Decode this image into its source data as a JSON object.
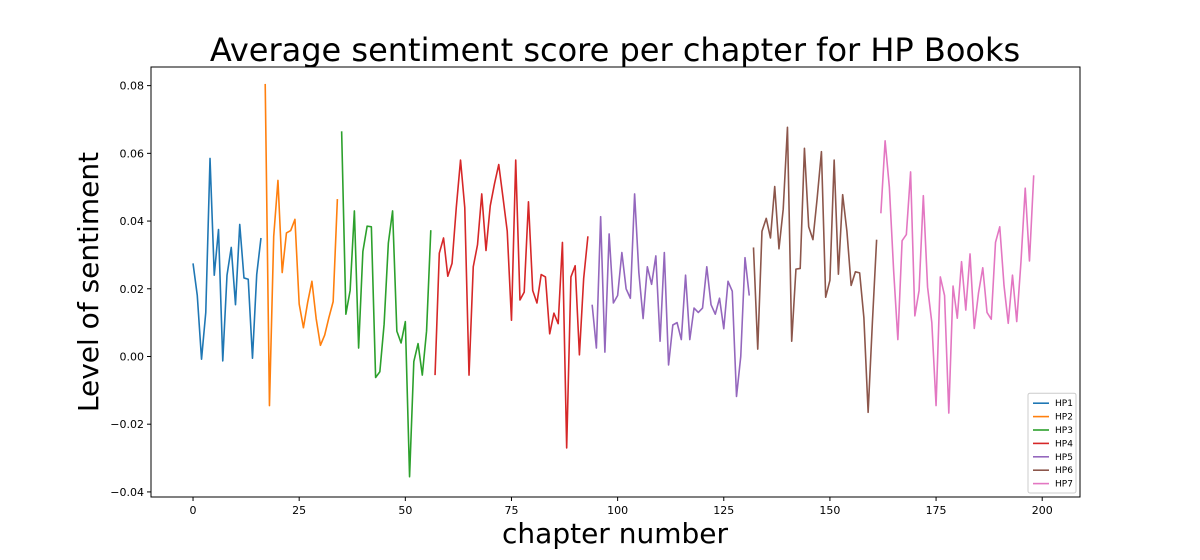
{
  "chart_data": {
    "type": "line",
    "title": "Average sentiment score per chapter for HP Books",
    "xlabel": "chapter number",
    "ylabel": "Level of sentiment",
    "xlim": [
      -9.9,
      208.9
    ],
    "ylim": [
      -0.0415,
      0.0855
    ],
    "xticks": [
      0,
      25,
      50,
      75,
      100,
      125,
      150,
      175,
      200
    ],
    "yticks": [
      -0.04,
      -0.02,
      0.0,
      0.02,
      0.04,
      0.06,
      0.08
    ],
    "ytick_labels": [
      "−0.04",
      "−0.02",
      "0.00",
      "0.02",
      "0.04",
      "0.06",
      "0.08"
    ],
    "grid": false,
    "legend_position": "lower-right",
    "series": [
      {
        "name": "HP1",
        "color": "#1f77b4",
        "x_start": 0,
        "values": [
          0.0275,
          0.018,
          -0.0008,
          0.013,
          0.0585,
          0.024,
          0.0375,
          -0.0013,
          0.024,
          0.0322,
          0.0153,
          0.039,
          0.0232,
          0.0228,
          -0.0005,
          0.0242,
          0.035
        ]
      },
      {
        "name": "HP2",
        "color": "#ff7f0e",
        "x_start": 17,
        "values": [
          0.0805,
          -0.0145,
          0.0355,
          0.052,
          0.0248,
          0.0365,
          0.0372,
          0.0405,
          0.0155,
          0.0085,
          0.016,
          0.0222,
          0.0112,
          0.0033,
          0.0063,
          0.0115,
          0.0162,
          0.0465
        ]
      },
      {
        "name": "HP3",
        "color": "#2ca02c",
        "x_start": 35,
        "values": [
          0.0665,
          0.0125,
          0.0195,
          0.043,
          0.0025,
          0.031,
          0.0385,
          0.0383,
          -0.0062,
          -0.0045,
          0.0095,
          0.0335,
          0.043,
          0.0075,
          0.004,
          0.0103,
          -0.0355,
          -0.0015,
          0.0038,
          -0.0055,
          0.0075,
          0.0373
        ]
      },
      {
        "name": "HP4",
        "color": "#d62728",
        "x_start": 57,
        "values": [
          -0.0055,
          0.0305,
          0.035,
          0.0237,
          0.0275,
          0.044,
          0.058,
          0.044,
          -0.0055,
          0.0265,
          0.033,
          0.048,
          0.0313,
          0.0445,
          0.051,
          0.0567,
          0.047,
          0.037,
          0.0107,
          0.058,
          0.0167,
          0.019,
          0.0457,
          0.0195,
          0.0158,
          0.0242,
          0.0235,
          0.0067,
          0.0128,
          0.0097,
          0.0337,
          -0.027,
          0.0235,
          0.0268,
          0.0005,
          0.023,
          0.0355
        ]
      },
      {
        "name": "HP5",
        "color": "#9467bd",
        "x_start": 94,
        "values": [
          0.0153,
          0.0025,
          0.0413,
          0.0013,
          0.0362,
          0.0158,
          0.018,
          0.0307,
          0.02,
          0.0172,
          0.048,
          0.0248,
          0.0112,
          0.0265,
          0.0213,
          0.0297,
          0.0045,
          0.0307,
          -0.0025,
          0.0093,
          0.01,
          0.005,
          0.024,
          0.005,
          0.0143,
          0.013,
          0.0143,
          0.0265,
          0.0153,
          0.0125,
          0.0172,
          0.0082,
          0.0222,
          0.0193,
          -0.0118,
          0.0,
          0.0292,
          0.018
        ]
      },
      {
        "name": "HP6",
        "color": "#8c564b",
        "x_start": 132,
        "values": [
          0.0322,
          0.0022,
          0.037,
          0.0408,
          0.035,
          0.0502,
          0.0318,
          0.0435,
          0.0677,
          0.0045,
          0.0258,
          0.026,
          0.0615,
          0.0383,
          0.0345,
          0.0468,
          0.0605,
          0.0175,
          0.0225,
          0.058,
          0.0243,
          0.0478,
          0.037,
          0.021,
          0.025,
          0.0247,
          0.0115,
          -0.0165,
          0.01,
          0.0345
        ]
      },
      {
        "name": "HP7",
        "color": "#e377c2",
        "x_start": 162,
        "values": [
          0.0423,
          0.0637,
          0.05,
          0.0255,
          0.005,
          0.0342,
          0.036,
          0.0545,
          0.012,
          0.0195,
          0.0475,
          0.0205,
          0.01,
          -0.0145,
          0.0235,
          0.018,
          -0.0167,
          0.0208,
          0.0113,
          0.028,
          0.0137,
          0.0303,
          0.0083,
          0.0188,
          0.0262,
          0.013,
          0.011,
          0.0337,
          0.0383,
          0.021,
          0.0098,
          0.024,
          0.0103,
          0.028,
          0.0497,
          0.0282,
          0.0535
        ]
      }
    ]
  }
}
